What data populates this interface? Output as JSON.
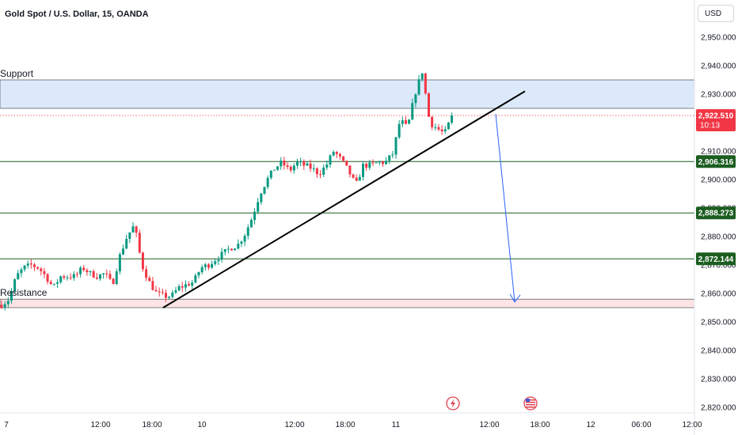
{
  "header": {
    "title": "Gold Spot / U.S. Dollar, 15, OANDA"
  },
  "currency_button": "USD",
  "zones": {
    "support_label": "Support",
    "resistance_label": "Resistance"
  },
  "colors": {
    "up": "#089981",
    "down": "#f23645",
    "support_zone": "#dbe9fb",
    "resistance_zone": "#fde4e6",
    "level_line": "#1b5e20",
    "badge_green": "#1b5e20",
    "badge_red": "#f23645",
    "arrow": "#2962ff",
    "trendline": "#000000"
  },
  "price_badges": [
    {
      "label": "2,906.316",
      "value": 2906.316,
      "color": "green"
    },
    {
      "label": "2,888.273",
      "value": 2888.273,
      "color": "green"
    },
    {
      "label": "2,872.144",
      "value": 2872.144,
      "color": "green"
    }
  ],
  "current_price": {
    "label": "2,922.510",
    "value": 2922.51,
    "countdown": "10:13"
  },
  "event_icons": [
    "lightning-event-icon",
    "us-flag-event-icon"
  ],
  "chart_data": {
    "type": "candlestick",
    "title": "Gold Spot / U.S. Dollar, 15, OANDA",
    "y_ticks": [
      2820,
      2830,
      2840,
      2850,
      2860,
      2870,
      2880,
      2890,
      2900,
      2910,
      2920,
      2930,
      2940,
      2950
    ],
    "y_tick_labels": [
      "2,820.000",
      "2,830.000",
      "2,840.000",
      "2,850.000",
      "2,860.000",
      "2,870.000",
      "2,880.000",
      "2,890.000",
      "2,900.000",
      "2,910.000",
      "2,920.000",
      "2,930.000",
      "2,940.000",
      "2,950.000"
    ],
    "ylim": [
      2818,
      2958
    ],
    "x_ticks": [
      "7",
      "12:00",
      "18:00",
      "10",
      "12:00",
      "18:00",
      "11",
      "12:00",
      "18:00",
      "12",
      "06:00",
      "12:00"
    ],
    "support_zone": [
      2925,
      2935
    ],
    "resistance_zone": [
      2855,
      2858
    ],
    "levels": [
      2906.316,
      2888.273,
      2872.144
    ],
    "current_price_line": 2922.51,
    "trendline": {
      "from": 2855,
      "to": 2931
    },
    "projection": {
      "from": 2923,
      "to": 2857
    },
    "close_path": [
      2856,
      2858,
      2866,
      2869,
      2870,
      2869,
      2866,
      2862,
      2866,
      2866,
      2866,
      2869,
      2867,
      2866,
      2867,
      2863,
      2873,
      2880,
      2884,
      2870,
      2864,
      2860,
      2859,
      2859,
      2862,
      2863,
      2864,
      2869,
      2870,
      2872,
      2874,
      2876,
      2877,
      2881,
      2887,
      2895,
      2900,
      2904,
      2906,
      2903,
      2906,
      2905,
      2904,
      2902,
      2905,
      2910,
      2907,
      2903,
      2898,
      2905,
      2905,
      2906,
      2906,
      2909,
      2921,
      2918,
      2930,
      2938,
      2920,
      2918,
      2916,
      2922
    ]
  }
}
